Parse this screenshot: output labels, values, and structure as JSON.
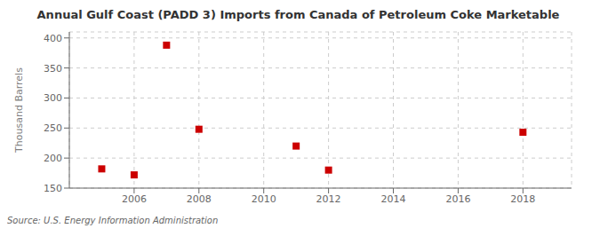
{
  "chart_data": {
    "type": "scatter",
    "title": "Annual Gulf Coast (PADD 3) Imports from Canada of Petroleum Coke Marketable",
    "ylabel": "Thousand Barrels",
    "annotation": "Source: U.S. Energy Information Administration",
    "x": [
      2005,
      2006,
      2007,
      2008,
      2011,
      2012,
      2018
    ],
    "values": [
      182,
      172,
      388,
      248,
      220,
      180,
      243
    ],
    "color": "#cc0000",
    "marker": "square",
    "xlim": [
      2004,
      2019.5
    ],
    "xticks": [
      2006,
      2008,
      2010,
      2012,
      2014,
      2016,
      2018
    ],
    "ylim": [
      150,
      410
    ],
    "yticks": [
      150,
      200,
      250,
      300,
      350,
      400
    ],
    "grid": true
  }
}
